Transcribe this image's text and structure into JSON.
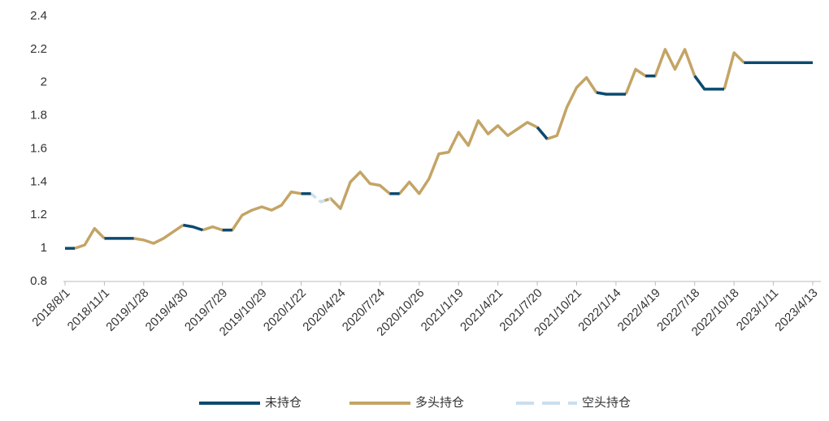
{
  "chart_data": {
    "type": "line",
    "categories": [
      "2018/8/1",
      null,
      null,
      null,
      "2018/11/1",
      null,
      null,
      null,
      "2019/1/28",
      null,
      null,
      null,
      "2019/4/30",
      null,
      null,
      null,
      "2019/7/29",
      null,
      null,
      null,
      "2019/10/29",
      null,
      null,
      null,
      "2020/1/22",
      null,
      null,
      null,
      "2020/4/24",
      null,
      null,
      null,
      "2020/7/24",
      null,
      null,
      null,
      "2020/10/26",
      null,
      null,
      null,
      "2021/1/19",
      null,
      null,
      null,
      "2021/4/21",
      null,
      null,
      null,
      "2021/7/20",
      null,
      null,
      null,
      "2021/10/21",
      null,
      null,
      null,
      "2022/1/14",
      null,
      null,
      null,
      "2022/4/19",
      null,
      null,
      null,
      "2022/7/18",
      null,
      null,
      null,
      "2022/10/18",
      null,
      null,
      null,
      "2023/1/11",
      null,
      null,
      null,
      "2023/4/13"
    ],
    "series": [
      {
        "name": "未持仓",
        "color": "#0b4a70",
        "dash": false,
        "values": [
          1.0,
          1.0,
          null,
          null,
          1.06,
          1.06,
          1.06,
          1.06,
          null,
          null,
          null,
          null,
          1.14,
          1.13,
          1.11,
          null,
          1.11,
          1.11,
          null,
          1.23,
          null,
          1.23,
          null,
          null,
          1.33,
          1.33,
          null,
          null,
          1.24,
          null,
          null,
          null,
          null,
          1.33,
          1.33,
          null,
          null,
          null,
          null,
          1.58,
          null,
          1.62,
          null,
          1.69,
          null,
          1.68,
          null,
          null,
          1.73,
          1.66,
          null,
          null,
          null,
          null,
          1.94,
          1.93,
          1.93,
          1.93,
          null,
          2.04,
          2.04,
          null,
          2.08,
          null,
          2.04,
          1.96,
          1.96,
          1.96,
          null,
          2.12,
          2.12,
          2.12,
          2.12,
          2.12,
          2.12,
          2.12,
          2.12
        ]
      },
      {
        "name": "多头持仓",
        "color": "#c4a466",
        "dash": false,
        "values": [
          null,
          1.0,
          1.02,
          1.12,
          1.06,
          null,
          null,
          1.06,
          1.05,
          1.03,
          1.06,
          1.1,
          1.14,
          null,
          1.11,
          1.13,
          1.11,
          1.11,
          1.2,
          1.23,
          1.25,
          1.23,
          1.26,
          1.34,
          1.33,
          null,
          1.28,
          1.3,
          1.24,
          1.4,
          1.46,
          1.39,
          1.38,
          1.33,
          1.33,
          1.4,
          1.33,
          1.42,
          1.57,
          1.58,
          1.7,
          1.62,
          1.77,
          1.69,
          1.74,
          1.68,
          1.72,
          1.76,
          1.73,
          1.66,
          1.68,
          1.85,
          1.97,
          2.03,
          1.94,
          null,
          null,
          1.93,
          2.08,
          2.04,
          2.04,
          2.2,
          2.08,
          2.2,
          2.04,
          null,
          null,
          1.96,
          2.18,
          2.12,
          null,
          null,
          null,
          null,
          null,
          null,
          null
        ]
      },
      {
        "name": "空头持仓",
        "color": "#cadeee",
        "dash": true,
        "values": [
          null,
          null,
          null,
          null,
          null,
          null,
          null,
          null,
          null,
          null,
          null,
          null,
          null,
          null,
          null,
          null,
          null,
          null,
          null,
          null,
          null,
          null,
          null,
          null,
          null,
          1.33,
          1.28,
          1.3,
          null,
          null,
          null,
          null,
          null,
          null,
          null,
          null,
          null,
          null,
          null,
          null,
          null,
          null,
          null,
          null,
          null,
          null,
          null,
          null,
          null,
          null,
          null,
          null,
          null,
          null,
          null,
          null,
          null,
          null,
          null,
          null,
          null,
          null,
          null,
          null,
          null,
          null,
          null,
          null,
          null,
          null,
          null,
          null,
          null,
          null,
          null,
          null,
          null
        ]
      }
    ],
    "ylim": [
      0.8,
      2.4
    ],
    "yticks": [
      0.8,
      1,
      1.2,
      1.4,
      1.6,
      1.8,
      2,
      2.2,
      2.4
    ],
    "grid": false,
    "legend": "bottom"
  }
}
